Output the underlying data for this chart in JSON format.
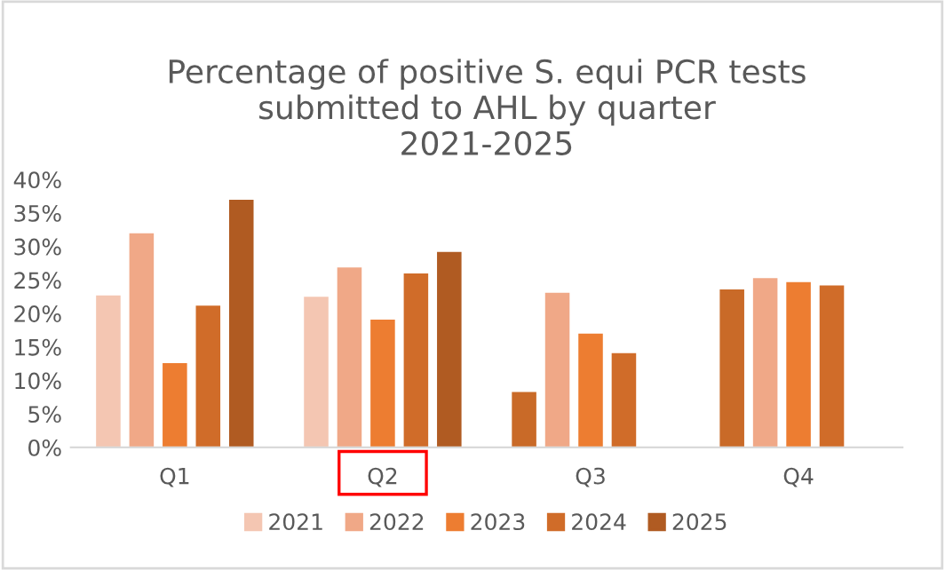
{
  "chart_data": {
    "type": "bar",
    "title": "Percentage of positive S. equi PCR tests\nsubmitted to AHL by quarter\n2021-2025",
    "categories": [
      "Q1",
      "Q2",
      "Q3",
      "Q4"
    ],
    "series": [
      {
        "name": "2021",
        "color": "#f4c6b2",
        "colors": [
          "#f4c6b2",
          "#f4c6b2",
          "#c96a28",
          "#c96a28"
        ],
        "values": [
          22.8,
          22.6,
          8.4,
          23.7
        ]
      },
      {
        "name": "2022",
        "color": "#f0a887",
        "values": [
          32.1,
          27.0,
          23.2,
          25.4
        ]
      },
      {
        "name": "2023",
        "color": "#ed7d31",
        "values": [
          12.7,
          19.2,
          17.1,
          24.8
        ]
      },
      {
        "name": "2024",
        "color": "#d06c29",
        "values": [
          21.3,
          26.1,
          14.2,
          24.3
        ]
      },
      {
        "name": "2025",
        "color": "#b05b22",
        "values": [
          37.1,
          29.3,
          null,
          null
        ]
      }
    ],
    "ylim": [
      0,
      40
    ],
    "yticks": [
      {
        "value": 0,
        "label": "0%"
      },
      {
        "value": 5,
        "label": "5%"
      },
      {
        "value": 10,
        "label": "10%"
      },
      {
        "value": 15,
        "label": "15%"
      },
      {
        "value": 20,
        "label": "20%"
      },
      {
        "value": 25,
        "label": "25%"
      },
      {
        "value": 30,
        "label": "30%"
      },
      {
        "value": 35,
        "label": "35%"
      },
      {
        "value": 40,
        "label": "40%"
      }
    ],
    "grid": false,
    "legend": "bottom"
  }
}
